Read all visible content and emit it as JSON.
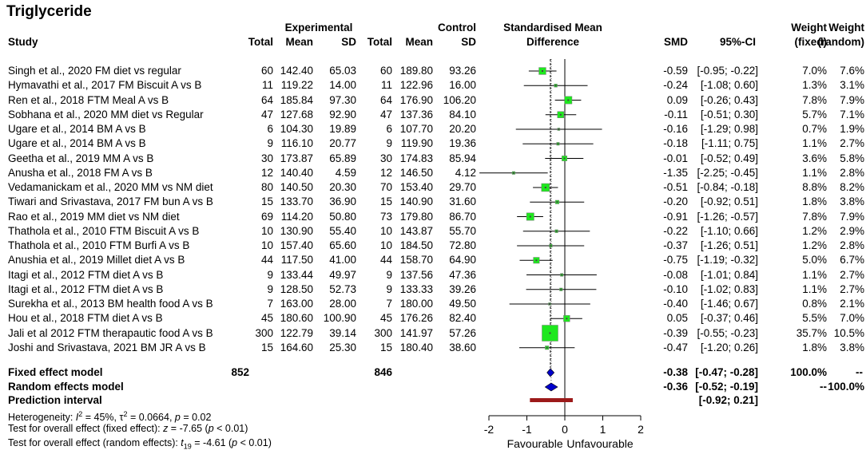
{
  "title": "Triglyceride",
  "headers": {
    "study": "Study",
    "experimental": "Experimental",
    "control": "Control",
    "total": "Total",
    "mean": "Mean",
    "sd": "SD",
    "smd_group_1": "Standardised Mean",
    "smd_group_2": "Difference",
    "smd": "SMD",
    "ci": "95%-CI",
    "weight": "Weight",
    "fixed": "(fixed)",
    "random": "(random)"
  },
  "studies": [
    {
      "study": "Singh et al., 2020 FM diet vs regular",
      "e_total": "60",
      "e_mean": "142.40",
      "e_sd": "65.03",
      "c_total": "60",
      "c_mean": "189.80",
      "c_sd": "93.26",
      "smd": "-0.59",
      "ci": "[-0.95; -0.22]",
      "w_fixed": "7.0%",
      "w_random": "7.6%"
    },
    {
      "study": "Hymavathi et al., 2017 FM Biscuit A vs B",
      "e_total": "11",
      "e_mean": "119.22",
      "e_sd": "14.00",
      "c_total": "11",
      "c_mean": "122.96",
      "c_sd": "16.00",
      "smd": "-0.24",
      "ci": "[-1.08; 0.60]",
      "w_fixed": "1.3%",
      "w_random": "3.1%"
    },
    {
      "study": "Ren et al., 2018 FTM Meal A vs B",
      "e_total": "64",
      "e_mean": "185.84",
      "e_sd": "97.30",
      "c_total": "64",
      "c_mean": "176.90",
      "c_sd": "106.20",
      "smd": "0.09",
      "ci": "[-0.26; 0.43]",
      "w_fixed": "7.8%",
      "w_random": "7.9%"
    },
    {
      "study": "Sobhana et al., 2020 MM diet vs Regular",
      "e_total": "47",
      "e_mean": "127.68",
      "e_sd": "92.90",
      "c_total": "47",
      "c_mean": "137.36",
      "c_sd": "84.10",
      "smd": "-0.11",
      "ci": "[-0.51; 0.30]",
      "w_fixed": "5.7%",
      "w_random": "7.1%"
    },
    {
      "study": "Ugare et al., 2014 BM A vs B",
      "e_total": "6",
      "e_mean": "104.30",
      "e_sd": "19.89",
      "c_total": "6",
      "c_mean": "107.70",
      "c_sd": "20.20",
      "smd": "-0.16",
      "ci": "[-1.29; 0.98]",
      "w_fixed": "0.7%",
      "w_random": "1.9%"
    },
    {
      "study": "Ugare et al., 2014 BM A vs B",
      "e_total": "9",
      "e_mean": "116.10",
      "e_sd": "20.77",
      "c_total": "9",
      "c_mean": "119.90",
      "c_sd": "19.36",
      "smd": "-0.18",
      "ci": "[-1.11; 0.75]",
      "w_fixed": "1.1%",
      "w_random": "2.7%"
    },
    {
      "study": "Geetha et al., 2019 MM A vs B",
      "e_total": "30",
      "e_mean": "173.87",
      "e_sd": "65.89",
      "c_total": "30",
      "c_mean": "174.83",
      "c_sd": "85.94",
      "smd": "-0.01",
      "ci": "[-0.52; 0.49]",
      "w_fixed": "3.6%",
      "w_random": "5.8%"
    },
    {
      "study": "Anusha et al., 2018 FM A vs B",
      "e_total": "12",
      "e_mean": "140.40",
      "e_sd": "4.59",
      "c_total": "12",
      "c_mean": "146.50",
      "c_sd": "4.12",
      "smd": "-1.35",
      "ci": "[-2.25; -0.45]",
      "w_fixed": "1.1%",
      "w_random": "2.8%"
    },
    {
      "study": "Vedamanickam et al., 2020 MM vs NM diet",
      "e_total": "80",
      "e_mean": "140.50",
      "e_sd": "20.30",
      "c_total": "70",
      "c_mean": "153.40",
      "c_sd": "29.70",
      "smd": "-0.51",
      "ci": "[-0.84; -0.18]",
      "w_fixed": "8.8%",
      "w_random": "8.2%"
    },
    {
      "study": "Tiwari and Srivastava, 2017 FM bun A vs B",
      "e_total": "15",
      "e_mean": "133.70",
      "e_sd": "36.90",
      "c_total": "15",
      "c_mean": "140.90",
      "c_sd": "31.60",
      "smd": "-0.20",
      "ci": "[-0.92; 0.51]",
      "w_fixed": "1.8%",
      "w_random": "3.8%"
    },
    {
      "study": "Rao et al., 2019 MM diet vs NM diet",
      "e_total": "69",
      "e_mean": "114.20",
      "e_sd": "50.80",
      "c_total": "73",
      "c_mean": "179.80",
      "c_sd": "86.70",
      "smd": "-0.91",
      "ci": "[-1.26; -0.57]",
      "w_fixed": "7.8%",
      "w_random": "7.9%"
    },
    {
      "study": "Thathola et al., 2010 FTM Biscuit A vs B",
      "e_total": "10",
      "e_mean": "130.90",
      "e_sd": "55.40",
      "c_total": "10",
      "c_mean": "143.87",
      "c_sd": "55.70",
      "smd": "-0.22",
      "ci": "[-1.10; 0.66]",
      "w_fixed": "1.2%",
      "w_random": "2.9%"
    },
    {
      "study": "Thathola et al., 2010 FTM Burfi A vs B",
      "e_total": "10",
      "e_mean": "157.40",
      "e_sd": "65.60",
      "c_total": "10",
      "c_mean": "184.50",
      "c_sd": "72.80",
      "smd": "-0.37",
      "ci": "[-1.26; 0.51]",
      "w_fixed": "1.2%",
      "w_random": "2.8%"
    },
    {
      "study": "Anushia et al., 2019 Millet diet A vs B",
      "e_total": "44",
      "e_mean": "117.50",
      "e_sd": "41.00",
      "c_total": "44",
      "c_mean": "158.70",
      "c_sd": "64.90",
      "smd": "-0.75",
      "ci": "[-1.19; -0.32]",
      "w_fixed": "5.0%",
      "w_random": "6.7%"
    },
    {
      "study": "Itagi et al., 2012 FTM diet A vs B",
      "e_total": "9",
      "e_mean": "133.44",
      "e_sd": "49.97",
      "c_total": "9",
      "c_mean": "137.56",
      "c_sd": "47.36",
      "smd": "-0.08",
      "ci": "[-1.01; 0.84]",
      "w_fixed": "1.1%",
      "w_random": "2.7%"
    },
    {
      "study": "Itagi et al., 2012 FTM diet A vs B",
      "e_total": "9",
      "e_mean": "128.50",
      "e_sd": "52.73",
      "c_total": "9",
      "c_mean": "133.33",
      "c_sd": "39.26",
      "smd": "-0.10",
      "ci": "[-1.02; 0.83]",
      "w_fixed": "1.1%",
      "w_random": "2.7%"
    },
    {
      "study": "Surekha et al., 2013 BM health food A vs B",
      "e_total": "7",
      "e_mean": "163.00",
      "e_sd": "28.00",
      "c_total": "7",
      "c_mean": "180.00",
      "c_sd": "49.50",
      "smd": "-0.40",
      "ci": "[-1.46; 0.67]",
      "w_fixed": "0.8%",
      "w_random": "2.1%"
    },
    {
      "study": "Hou et al., 2018 FTM diet A vs B",
      "e_total": "45",
      "e_mean": "180.60",
      "e_sd": "100.90",
      "c_total": "45",
      "c_mean": "176.26",
      "c_sd": "82.40",
      "smd": "0.05",
      "ci": "[-0.37; 0.46]",
      "w_fixed": "5.5%",
      "w_random": "7.0%"
    },
    {
      "study": "Jali et al 2012 FTM therapautic food A vs B",
      "e_total": "300",
      "e_mean": "122.79",
      "e_sd": "39.14",
      "c_total": "300",
      "c_mean": "141.97",
      "c_sd": "57.26",
      "smd": "-0.39",
      "ci": "[-0.55; -0.23]",
      "w_fixed": "35.7%",
      "w_random": "10.5%"
    },
    {
      "study": "Joshi and Srivastava, 2021 BM JR A vs B",
      "e_total": "15",
      "e_mean": "164.60",
      "e_sd": "25.30",
      "c_total": "15",
      "c_mean": "180.40",
      "c_sd": "38.60",
      "smd": "-0.47",
      "ci": "[-1.20; 0.26]",
      "w_fixed": "1.8%",
      "w_random": "3.8%"
    }
  ],
  "summary": {
    "fixed": {
      "label": "Fixed effect model",
      "e_total": "852",
      "c_total": "846",
      "smd": "-0.38",
      "ci": "[-0.47; -0.28]",
      "w_fixed": "100.0%",
      "w_random": "--"
    },
    "random": {
      "label": "Random effects model",
      "smd": "-0.36",
      "ci": "[-0.52; -0.19]",
      "w_fixed": "--",
      "w_random": "100.0%"
    },
    "prediction": {
      "label": "Prediction interval",
      "ci": "[-0.92; 0.21]"
    }
  },
  "footnotes": {
    "heterogeneity_prefix": "Heterogeneity: ",
    "i2_sym": "I",
    "sup2": "2",
    "i2_value": " = 45%, ",
    "tau_sym": "τ",
    "tau_value": " = 0.0664, ",
    "p_sym": "p",
    "p_value": " = 0.02",
    "fixed_prefix": "Test for overall effect (fixed effect): ",
    "z_sym": "z",
    "fixed_value": " = -7.65 (",
    "fixed_p": " < 0.01)",
    "random_prefix": "Test for overall effect (random effects): ",
    "t_sym": "t",
    "t_sub": "19",
    "random_value": " = -4.61 (",
    "random_p": " < 0.01)"
  },
  "axis": {
    "ticks": [
      "-2",
      "-1",
      "0",
      "1",
      "2"
    ],
    "left_label": "Favourable",
    "right_label": "Unfavourable"
  },
  "colors": {
    "square": "#1ee81e",
    "diamond": "#0000cc",
    "prediction": "#9c1a1a"
  },
  "chart_data": {
    "type": "forest",
    "title": "Triglyceride",
    "x_range": [
      -2,
      2
    ],
    "x_ticks": [
      -2,
      -1,
      0,
      1,
      2
    ],
    "categories": [
      "Singh et al., 2020 FM diet vs regular",
      "Hymavathi et al., 2017 FM Biscuit A vs B",
      "Ren et al., 2018 FTM Meal A vs B",
      "Sobhana et al., 2020 MM diet vs Regular",
      "Ugare et al., 2014 BM A vs B",
      "Ugare et al., 2014 BM A vs B",
      "Geetha et al., 2019 MM A vs B",
      "Anusha et al., 2018 FM A vs B",
      "Vedamanickam et al., 2020 MM vs NM diet",
      "Tiwari and Srivastava, 2017 FM bun A vs B",
      "Rao et al., 2019 MM diet vs NM diet",
      "Thathola et al., 2010 FTM Biscuit A vs B",
      "Thathola et al., 2010 FTM Burfi A vs B",
      "Anushia et al., 2019 Millet diet A vs B",
      "Itagi et al., 2012 FTM diet A vs B",
      "Itagi et al., 2012 FTM diet A vs B",
      "Surekha et al., 2013 BM health food A vs B",
      "Hou et al., 2018 FTM diet A vs B",
      "Jali et al 2012 FTM therapautic food A vs B",
      "Joshi and Srivastava, 2021 BM JR A vs B"
    ],
    "smd": [
      -0.59,
      -0.24,
      0.09,
      -0.11,
      -0.16,
      -0.18,
      -0.01,
      -1.35,
      -0.51,
      -0.2,
      -0.91,
      -0.22,
      -0.37,
      -0.75,
      -0.08,
      -0.1,
      -0.4,
      0.05,
      -0.39,
      -0.47
    ],
    "ci_low": [
      -0.95,
      -1.08,
      -0.26,
      -0.51,
      -1.29,
      -1.11,
      -0.52,
      -2.25,
      -0.84,
      -0.92,
      -1.26,
      -1.1,
      -1.26,
      -1.19,
      -1.01,
      -1.02,
      -1.46,
      -0.37,
      -0.55,
      -1.2
    ],
    "ci_high": [
      -0.22,
      0.6,
      0.43,
      0.3,
      0.98,
      0.75,
      0.49,
      -0.45,
      -0.18,
      0.51,
      -0.57,
      0.66,
      0.51,
      -0.32,
      0.84,
      0.83,
      0.67,
      0.46,
      -0.23,
      0.26
    ],
    "weight_fixed": [
      7.0,
      1.3,
      7.8,
      5.7,
      0.7,
      1.1,
      3.6,
      1.1,
      8.8,
      1.8,
      7.8,
      1.2,
      1.2,
      5.0,
      1.1,
      1.1,
      0.8,
      5.5,
      35.7,
      1.8
    ],
    "weight_random": [
      7.6,
      3.1,
      7.9,
      7.1,
      1.9,
      2.7,
      5.8,
      2.8,
      8.2,
      3.8,
      7.9,
      2.9,
      2.8,
      6.7,
      2.7,
      2.7,
      2.1,
      7.0,
      10.5,
      3.8
    ],
    "fixed_effect": {
      "smd": -0.38,
      "ci": [
        -0.47,
        -0.28
      ]
    },
    "random_effects": {
      "smd": -0.36,
      "ci": [
        -0.52,
        -0.19
      ]
    },
    "prediction_interval": [
      -0.92,
      0.21
    ],
    "xlabel_left": "Favourable",
    "xlabel_right": "Unfavourable"
  }
}
